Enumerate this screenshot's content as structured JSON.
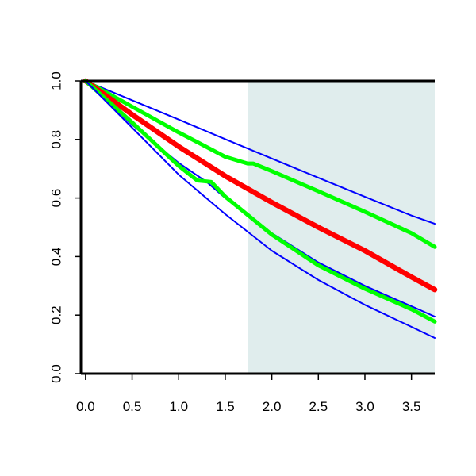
{
  "chart_data": {
    "type": "line",
    "title": "",
    "xlabel": "",
    "ylabel": "",
    "xlim": [
      -0.05,
      3.75
    ],
    "ylim": [
      0,
      1
    ],
    "x_ticks": [
      0.0,
      0.5,
      1.0,
      1.5,
      2.0,
      2.5,
      3.0,
      3.5
    ],
    "x_tick_labels": [
      "0.0",
      "0.5",
      "1.0",
      "1.5",
      "2.0",
      "2.5",
      "3.0",
      "3.5"
    ],
    "y_ticks": [
      0.0,
      0.2,
      0.4,
      0.6,
      0.8,
      1.0
    ],
    "y_tick_labels": [
      "0.0",
      "0.2",
      "0.4",
      "0.6",
      "0.8",
      "1.0"
    ],
    "shaded_region": {
      "x_start": 1.74,
      "x_end": 3.75,
      "color": "#e0eded"
    },
    "grid": false,
    "legend": "none",
    "series": [
      {
        "color": "#0000ff",
        "style": "thin",
        "x": [
          0,
          0.5,
          1.0,
          1.5,
          2.0,
          2.5,
          3.0,
          3.5,
          3.75
        ],
        "y": [
          1.0,
          0.934,
          0.868,
          0.801,
          0.735,
          0.669,
          0.604,
          0.54,
          0.512
        ]
      },
      {
        "color": "#00ff00",
        "style": "thick",
        "x": [
          0,
          0.5,
          1.0,
          1.5,
          1.74,
          1.8,
          2.0,
          2.5,
          3.0,
          3.5,
          3.75
        ],
        "y": [
          1.0,
          0.912,
          0.824,
          0.741,
          0.718,
          0.718,
          0.692,
          0.623,
          0.553,
          0.48,
          0.433
        ]
      },
      {
        "color": "#ff0000",
        "style": "thickest",
        "x": [
          0,
          0.5,
          1.0,
          1.5,
          2.0,
          2.5,
          3.0,
          3.5,
          3.75
        ],
        "y": [
          1.0,
          0.885,
          0.776,
          0.675,
          0.585,
          0.5,
          0.42,
          0.33,
          0.287
        ]
      },
      {
        "color": "#0000ff",
        "style": "thin",
        "x": [
          0,
          0.5,
          1.0,
          1.3,
          1.5,
          2.0,
          2.5,
          3.0,
          3.5,
          3.75
        ],
        "y": [
          1.0,
          0.85,
          0.72,
          0.655,
          0.6,
          0.48,
          0.38,
          0.3,
          0.23,
          0.195
        ]
      },
      {
        "color": "#00ff00",
        "style": "thick",
        "x": [
          0,
          0.5,
          1.0,
          1.2,
          1.35,
          1.5,
          2.0,
          2.5,
          3.0,
          3.5,
          3.75
        ],
        "y": [
          1.0,
          0.858,
          0.71,
          0.66,
          0.655,
          0.605,
          0.475,
          0.37,
          0.29,
          0.22,
          0.178
        ]
      },
      {
        "color": "#0000ff",
        "style": "thin",
        "x": [
          0,
          0.5,
          1.0,
          1.5,
          2.0,
          2.5,
          3.0,
          3.5,
          3.75
        ],
        "y": [
          1.0,
          0.84,
          0.68,
          0.545,
          0.42,
          0.32,
          0.235,
          0.16,
          0.122
        ]
      }
    ]
  }
}
